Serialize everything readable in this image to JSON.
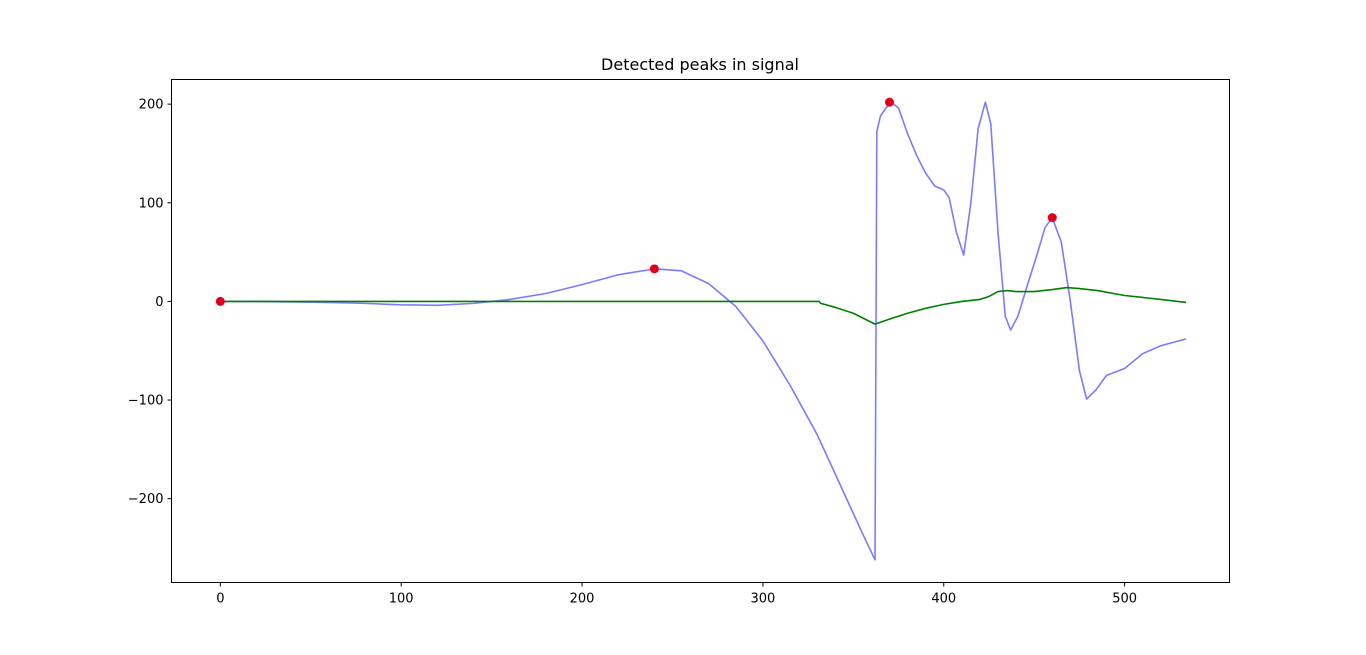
{
  "chart_data": {
    "type": "line",
    "title": "Detected peaks in signal",
    "xlabel": "",
    "ylabel": "",
    "xlim": [
      -27,
      558
    ],
    "ylim": [
      -285,
      225
    ],
    "grid": false,
    "xticks": [
      0,
      100,
      200,
      300,
      400,
      500
    ],
    "yticks": [
      -200,
      -100,
      0,
      100,
      200
    ],
    "xtick_labels": [
      "0",
      "100",
      "200",
      "300",
      "400",
      "500"
    ],
    "ytick_labels": [
      "−200",
      "−100",
      "0",
      "100",
      "200"
    ],
    "series": [
      {
        "color": "#7b7bff",
        "x": [
          0,
          20,
          40,
          60,
          80,
          100,
          120,
          140,
          160,
          180,
          200,
          220,
          240,
          255,
          270,
          285,
          300,
          315,
          330,
          345,
          355,
          362,
          363,
          365,
          368,
          371,
          375,
          380,
          385,
          390,
          395,
          400,
          403,
          407,
          411,
          415,
          419,
          423,
          426,
          430,
          434,
          437,
          441,
          446,
          452,
          456,
          460,
          465,
          470,
          475,
          479,
          484,
          490,
          500,
          510,
          520,
          534
        ],
        "y": [
          0,
          0,
          -0.5,
          -1,
          -2,
          -3.5,
          -4,
          -2,
          2,
          8,
          17,
          27,
          33,
          31,
          18,
          -5,
          -40,
          -85,
          -135,
          -195,
          -235,
          -262,
          172,
          188,
          196,
          202,
          196,
          170,
          148,
          130,
          117,
          113,
          105,
          70,
          47,
          100,
          175,
          202,
          180,
          70,
          -15,
          -29,
          -15,
          15,
          50,
          75,
          85,
          60,
          0,
          -70,
          -99,
          -90,
          -75,
          -68,
          -53,
          -45,
          -38
        ]
      },
      {
        "color": "#008000",
        "x": [
          0,
          50,
          100,
          150,
          200,
          250,
          300,
          331,
          332,
          340,
          350,
          362,
          370,
          380,
          390,
          400,
          410,
          420,
          425,
          430,
          435,
          440,
          445,
          450,
          460,
          468,
          475,
          485,
          500,
          520,
          534
        ],
        "y": [
          0,
          0,
          0,
          0,
          0,
          0,
          0,
          0,
          -2,
          -6,
          -12,
          -23,
          -18,
          -12,
          -7,
          -3,
          0,
          2,
          5,
          10,
          11,
          10,
          10,
          10,
          12,
          14,
          13,
          11,
          6,
          2,
          -1
        ]
      }
    ],
    "peaks": {
      "color": "#e0001a",
      "x": [
        0,
        240,
        370,
        460
      ],
      "y": [
        0,
        33,
        202,
        85
      ]
    }
  }
}
